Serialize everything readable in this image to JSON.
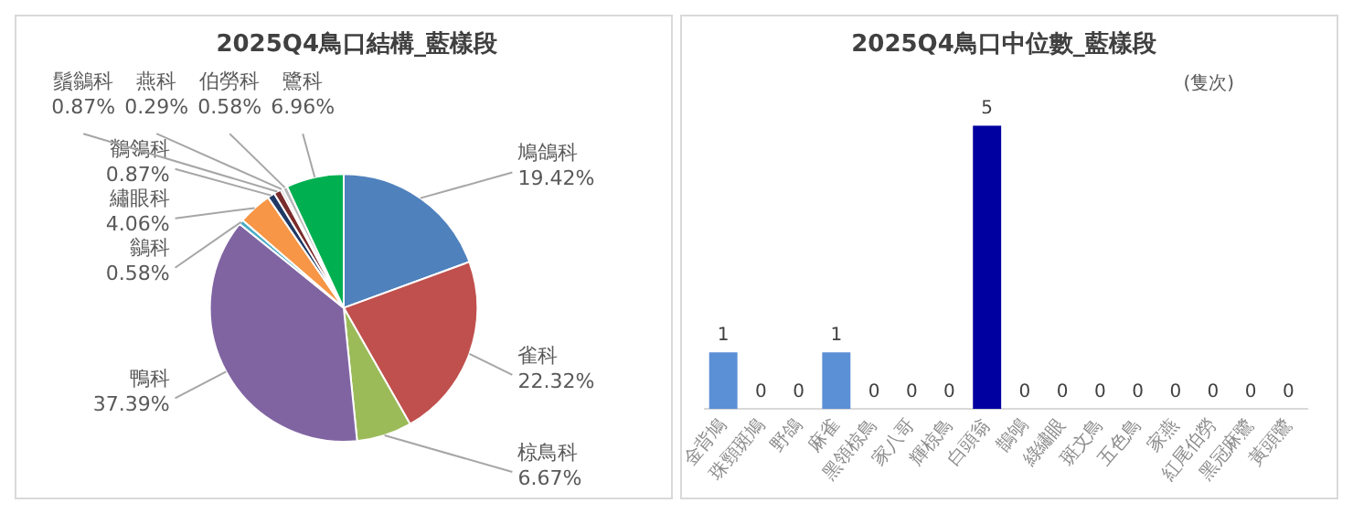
{
  "chart_data": [
    {
      "type": "pie",
      "title": "2025Q4鳥口結構_藍樣段",
      "categories": [
        "鳩鴿科",
        "雀科",
        "椋鳥科",
        "鴨科",
        "鶲科",
        "繡眼科",
        "鶺鴒科",
        "鬚鶲科",
        "燕科",
        "伯勞科",
        "鷺科"
      ],
      "values": [
        19.42,
        22.32,
        6.67,
        37.39,
        0.58,
        4.06,
        0.87,
        0.87,
        0.29,
        0.58,
        6.96
      ],
      "value_labels": [
        "19.42%",
        "22.32%",
        "6.67%",
        "37.39%",
        "0.58%",
        "4.06%",
        "0.87%",
        "0.87%",
        "0.29%",
        "0.58%",
        "6.96%"
      ],
      "colors": [
        "#4f81bd",
        "#c0504d",
        "#9bbb59",
        "#8064a2",
        "#4bacc6",
        "#f79646",
        "#1f3864",
        "#7b2c2c",
        "#a6a6a6",
        "#b7b7b7",
        "#00b050"
      ],
      "legend": false
    },
    {
      "type": "bar",
      "title": "2025Q4鳥口中位數_藍樣段",
      "ylabel": "(隻次)",
      "categories": [
        "金背鳩",
        "珠頸斑鳩",
        "野鴿",
        "麻雀",
        "黑領椋鳥",
        "家八哥",
        "輝椋鳥",
        "白頭翁",
        "鵲鴝",
        "綠繡眼",
        "斑文鳥",
        "五色鳥",
        "家燕",
        "紅尾伯勞",
        "黑冠麻鷺",
        "黃頭鷺"
      ],
      "values": [
        1,
        0,
        0,
        1,
        0,
        0,
        0,
        5,
        0,
        0,
        0,
        0,
        0,
        0,
        0,
        0
      ],
      "colors": [
        "#5b8fd6",
        "#5b8fd6",
        "#5b8fd6",
        "#5b8fd6",
        "#5b8fd6",
        "#5b8fd6",
        "#5b8fd6",
        "#0000a0",
        "#5b8fd6",
        "#5b8fd6",
        "#5b8fd6",
        "#5b8fd6",
        "#5b8fd6",
        "#5b8fd6",
        "#5b8fd6",
        "#5b8fd6"
      ],
      "data_labels": true,
      "tick_labels": "x",
      "grid": false,
      "legend": false
    }
  ]
}
